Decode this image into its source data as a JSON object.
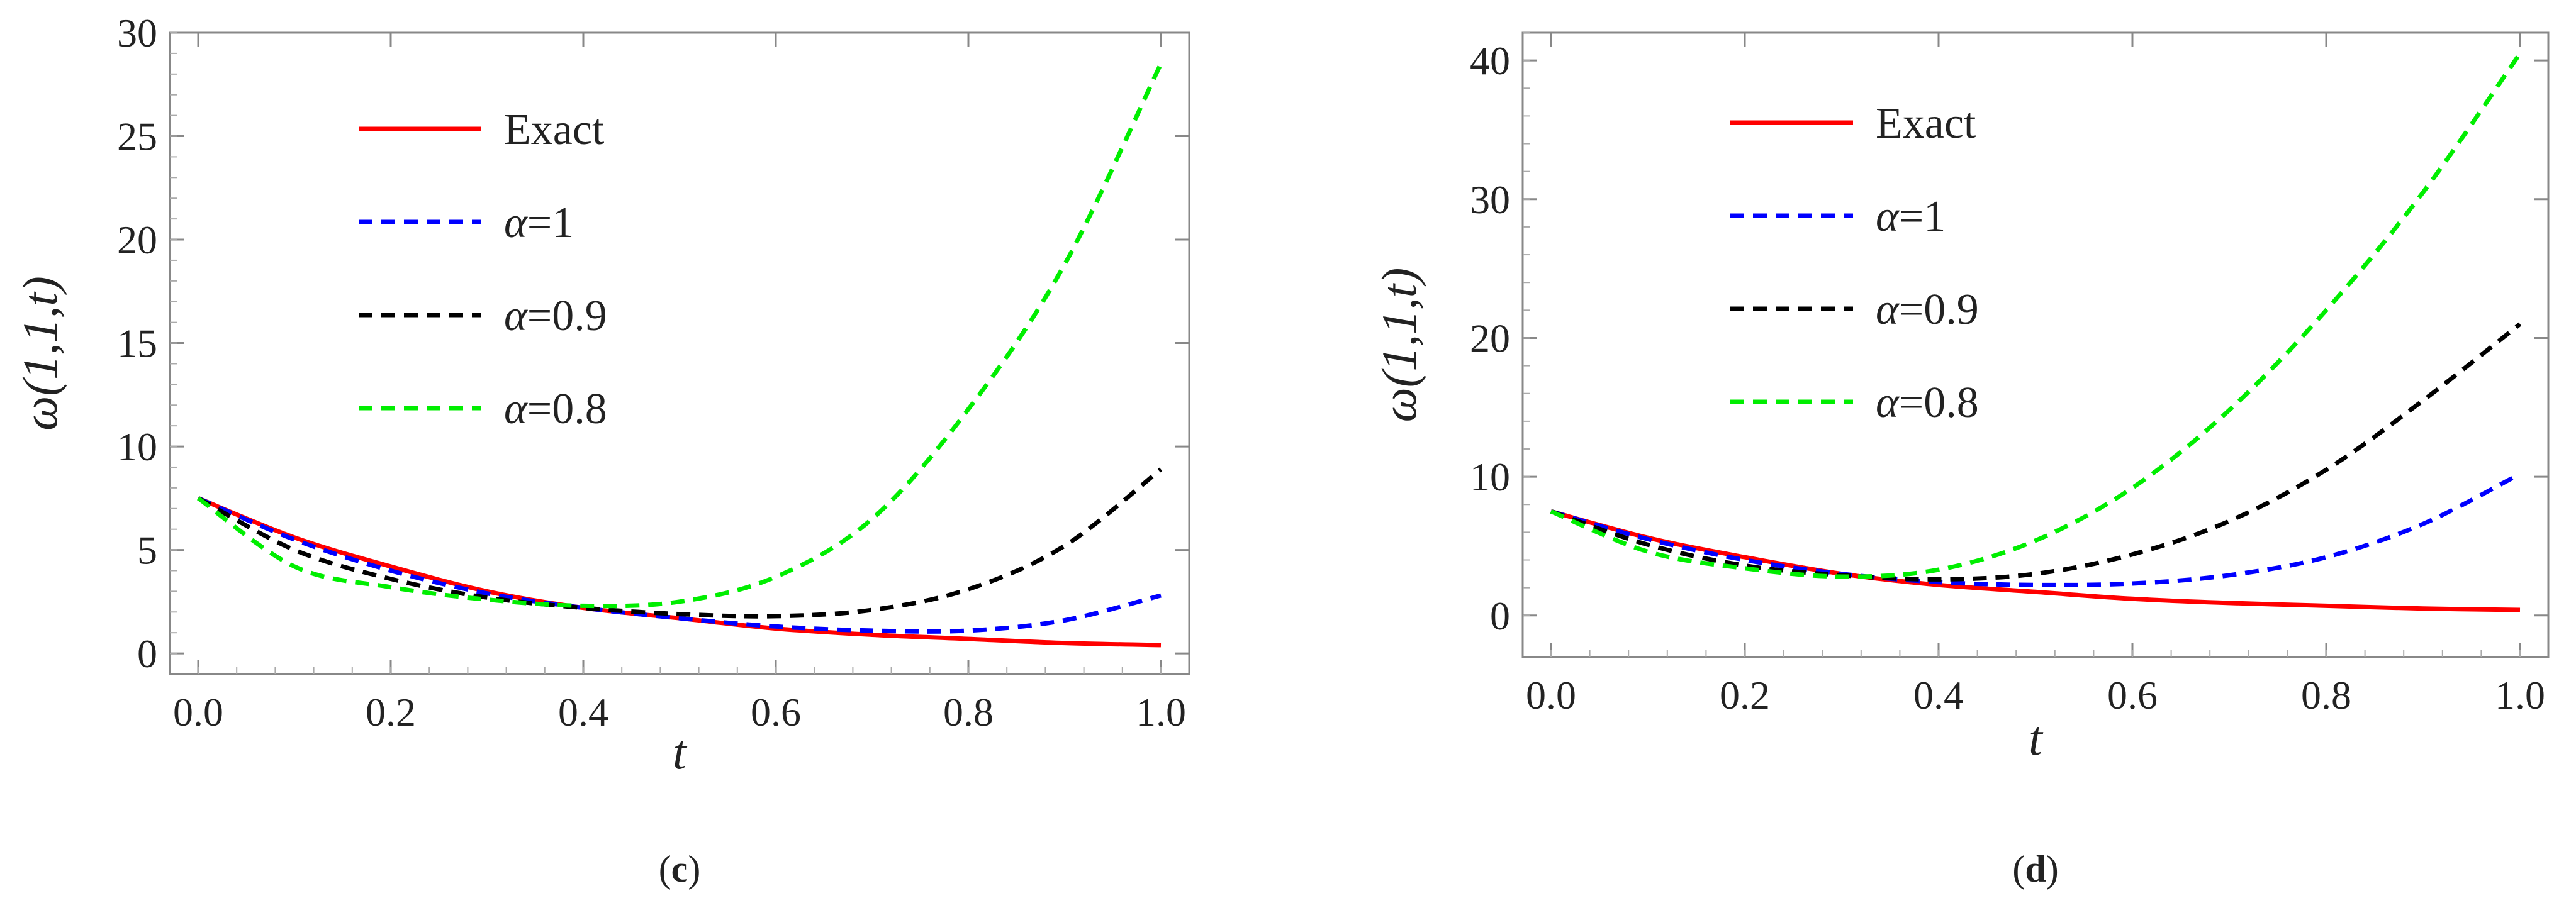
{
  "chart_data": [
    {
      "type": "line",
      "caption_prefix": "(",
      "caption_letter": "c",
      "caption_suffix": ")",
      "title": "",
      "xlabel": "t",
      "ylabel": "ω(1,1,t)",
      "xlim": [
        0.0,
        1.0
      ],
      "ylim": [
        -1,
        30
      ],
      "xticks": [
        "0.0",
        "0.2",
        "0.4",
        "0.6",
        "0.8",
        "1.0"
      ],
      "yticks": [
        "0",
        "5",
        "10",
        "15",
        "20",
        "25",
        "30"
      ],
      "legend_position": "upper-left",
      "series": [
        {
          "name": "Exact",
          "legend_prefix": "",
          "legend_value": "Exact",
          "color": "#ff0000",
          "dash": "solid",
          "x": [
            0.0,
            0.1,
            0.2,
            0.3,
            0.4,
            0.5,
            0.6,
            0.7,
            0.8,
            0.9,
            1.0
          ],
          "y": [
            7.5,
            5.6,
            4.2,
            3.0,
            2.2,
            1.7,
            1.2,
            0.9,
            0.7,
            0.5,
            0.4
          ]
        },
        {
          "name": "α=1",
          "legend_prefix": "α",
          "legend_value": "=1",
          "color": "#0000ff",
          "dash": "dashed",
          "x": [
            0.0,
            0.1,
            0.2,
            0.3,
            0.4,
            0.5,
            0.6,
            0.7,
            0.8,
            0.9,
            1.0
          ],
          "y": [
            7.5,
            5.5,
            4.0,
            2.9,
            2.2,
            1.7,
            1.3,
            1.1,
            1.1,
            1.6,
            2.8
          ]
        },
        {
          "name": "α=0.9",
          "legend_prefix": "α",
          "legend_value": "=0.9",
          "color": "#000000",
          "dash": "dashed",
          "x": [
            0.0,
            0.1,
            0.2,
            0.3,
            0.4,
            0.5,
            0.6,
            0.7,
            0.8,
            0.9,
            1.0
          ],
          "y": [
            7.5,
            5.0,
            3.6,
            2.7,
            2.2,
            1.9,
            1.8,
            2.1,
            3.1,
            5.2,
            8.9
          ]
        },
        {
          "name": "α=0.8",
          "legend_prefix": "α",
          "legend_value": "=0.8",
          "color": "#00ee00",
          "dash": "dashed",
          "x": [
            0.0,
            0.1,
            0.2,
            0.3,
            0.4,
            0.5,
            0.6,
            0.7,
            0.8,
            0.9,
            1.0
          ],
          "y": [
            7.5,
            4.2,
            3.2,
            2.6,
            2.3,
            2.5,
            3.7,
            6.5,
            11.8,
            18.8,
            28.5
          ]
        }
      ]
    },
    {
      "type": "line",
      "caption_prefix": "(",
      "caption_letter": "d",
      "caption_suffix": ")",
      "title": "",
      "xlabel": "t",
      "ylabel": "ω(1,1,t)",
      "xlim": [
        0.0,
        1.0
      ],
      "ylim": [
        -3,
        42
      ],
      "xticks": [
        "0.0",
        "0.2",
        "0.4",
        "0.6",
        "0.8",
        "1.0"
      ],
      "yticks": [
        "0",
        "10",
        "20",
        "30",
        "40"
      ],
      "legend_position": "upper-left",
      "series": [
        {
          "name": "Exact",
          "legend_prefix": "",
          "legend_value": "Exact",
          "color": "#ff0000",
          "dash": "solid",
          "x": [
            0.0,
            0.1,
            0.2,
            0.3,
            0.4,
            0.5,
            0.6,
            0.7,
            0.8,
            0.9,
            1.0
          ],
          "y": [
            7.5,
            5.6,
            4.2,
            3.0,
            2.2,
            1.7,
            1.2,
            0.9,
            0.7,
            0.5,
            0.4
          ]
        },
        {
          "name": "α=1",
          "legend_prefix": "α",
          "legend_value": "=1",
          "color": "#0000ff",
          "dash": "dashed",
          "x": [
            0.0,
            0.1,
            0.2,
            0.3,
            0.4,
            0.5,
            0.6,
            0.7,
            0.8,
            0.9,
            1.0
          ],
          "y": [
            7.5,
            5.5,
            4.0,
            3.0,
            2.4,
            2.2,
            2.3,
            2.9,
            4.2,
            6.6,
            10.2
          ]
        },
        {
          "name": "α=0.9",
          "legend_prefix": "α",
          "legend_value": "=0.9",
          "color": "#000000",
          "dash": "dashed",
          "x": [
            0.0,
            0.1,
            0.2,
            0.3,
            0.4,
            0.5,
            0.6,
            0.7,
            0.8,
            0.9,
            1.0
          ],
          "y": [
            7.5,
            5.1,
            3.6,
            2.9,
            2.6,
            3.0,
            4.4,
            6.8,
            10.5,
            15.5,
            21.0
          ]
        },
        {
          "name": "α=0.8",
          "legend_prefix": "α",
          "legend_value": "=0.8",
          "color": "#00ee00",
          "dash": "dashed",
          "x": [
            0.0,
            0.1,
            0.2,
            0.3,
            0.4,
            0.5,
            0.6,
            0.7,
            0.8,
            0.9,
            1.0
          ],
          "y": [
            7.5,
            4.6,
            3.4,
            2.8,
            3.3,
            5.4,
            9.2,
            14.8,
            22.0,
            30.5,
            40.5
          ]
        }
      ]
    }
  ]
}
